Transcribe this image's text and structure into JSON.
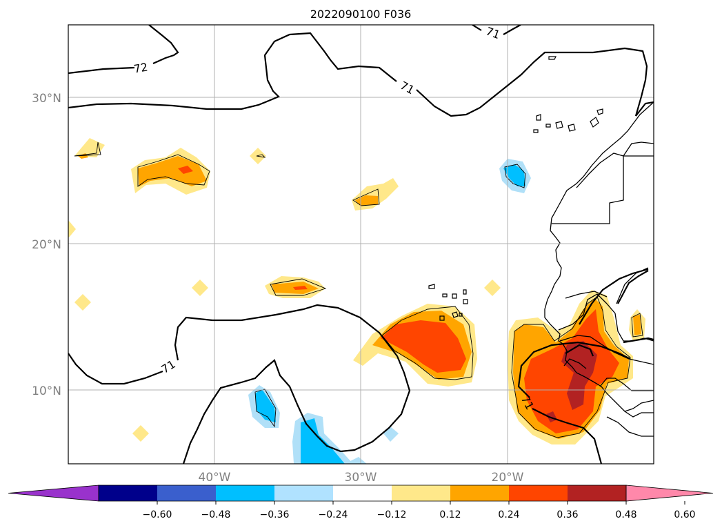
{
  "figure": {
    "title": "2022090100 F036"
  },
  "map": {
    "lat_labels": [
      "30°N",
      "20°N",
      "10°N"
    ],
    "lon_labels": [
      "40°W",
      "30°W",
      "20°W"
    ],
    "contour_labels": [
      "72",
      "71",
      "71",
      "71",
      "71"
    ],
    "colors": {
      "pale_yellow": "#ffe88a",
      "orange": "#ffa500",
      "red_orange": "#ff4500",
      "dark_red": "#b22222",
      "light_blue": "#b0e0f8",
      "blue": "#00bfff"
    }
  },
  "colorbar": {
    "tick_labels": [
      "−0.60",
      "−0.48",
      "−0.36",
      "−0.24",
      "−0.12",
      "0.12",
      "0.24",
      "0.36",
      "0.48",
      "0.60"
    ],
    "colors": [
      "#9932cc",
      "#00008b",
      "#3a5fcd",
      "#00bfff",
      "#b0e2ff",
      "#ffffff",
      "#ffe88a",
      "#ffa500",
      "#ff4500",
      "#b22222",
      "#ff88aa"
    ]
  }
}
